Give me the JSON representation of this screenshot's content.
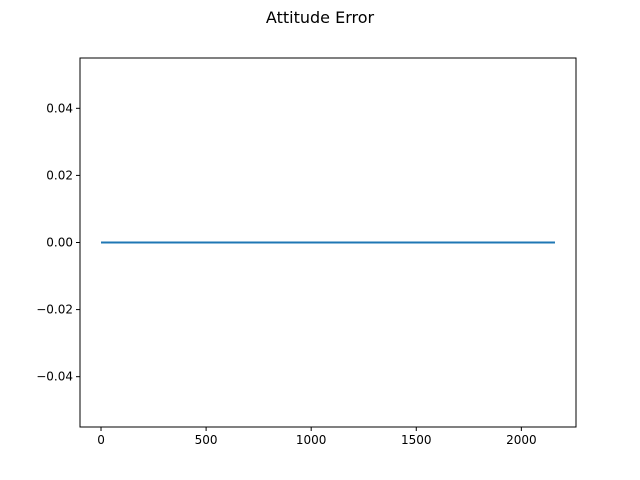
{
  "chart_data": {
    "type": "line",
    "title": "Attitude Error",
    "xlabel": "",
    "ylabel": "",
    "xlim": [
      -100,
      2260
    ],
    "ylim": [
      -0.055,
      0.055
    ],
    "x_ticks": [
      0,
      500,
      1000,
      1500,
      2000
    ],
    "x_tick_labels": [
      "0",
      "500",
      "1000",
      "1500",
      "2000"
    ],
    "y_ticks": [
      0.04,
      0.02,
      0.0,
      -0.02,
      -0.04
    ],
    "y_tick_labels": [
      "0.04",
      "0.02",
      "0.00",
      "−0.02",
      "−0.04"
    ],
    "grid": false,
    "legend": "none",
    "series": [
      {
        "x": [
          0,
          2160
        ],
        "y": [
          0.0,
          0.0
        ],
        "color": "#1f77b4"
      }
    ]
  }
}
